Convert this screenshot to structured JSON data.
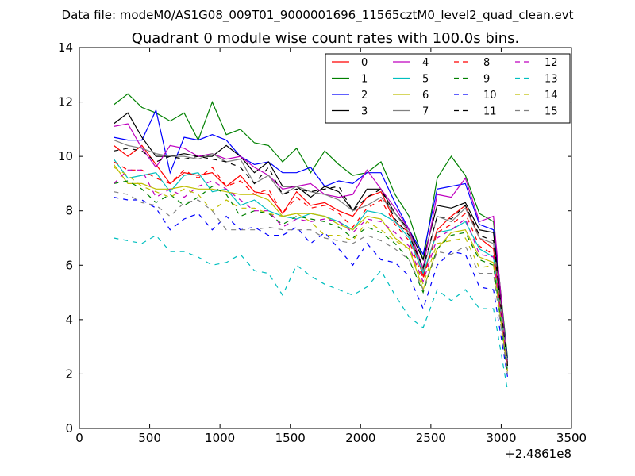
{
  "chart_data": {
    "type": "line",
    "suptitle": "Data file: modeM0/AS1G08_009T01_9000001696_11565cztM0_level2_quad_clean.evt",
    "title": "Quadrant 0 module wise count rates with 100.0s bins.",
    "xlabel": "",
    "ylabel": "",
    "x_offset_label": "+2.4861e8",
    "xlim": [
      0,
      3500
    ],
    "ylim": [
      0,
      14
    ],
    "xticks": [
      0,
      500,
      1000,
      1500,
      2000,
      2500,
      3000,
      3500
    ],
    "xtick_labels": [
      "0",
      "500",
      "1000",
      "1500",
      "2000",
      "2500",
      "3000",
      "3500"
    ],
    "yticks": [
      0,
      2,
      4,
      6,
      8,
      10,
      12,
      14
    ],
    "ytick_labels": [
      "0",
      "2",
      "4",
      "6",
      "8",
      "10",
      "12",
      "14"
    ],
    "grid": false,
    "legend_position": "top-right",
    "legend_columns": 4,
    "x": [
      245,
      345,
      445,
      545,
      645,
      745,
      845,
      945,
      1045,
      1145,
      1245,
      1345,
      1445,
      1545,
      1645,
      1745,
      1845,
      1945,
      2045,
      2145,
      2245,
      2345,
      2445,
      2545,
      2645,
      2745,
      2845,
      2945,
      3045
    ],
    "series": [
      {
        "name": "0",
        "color": "#ff0000",
        "dash": "solid",
        "values": [
          10.4,
          10.0,
          10.4,
          9.7,
          9.0,
          9.4,
          9.3,
          9.4,
          8.9,
          9.3,
          8.7,
          8.6,
          7.9,
          8.7,
          8.2,
          8.3,
          8.0,
          7.8,
          8.5,
          8.7,
          7.6,
          7.2,
          5.6,
          7.3,
          7.8,
          8.2,
          7.0,
          6.6,
          2.4
        ]
      },
      {
        "name": "1",
        "color": "#008000",
        "dash": "solid",
        "values": [
          11.9,
          12.3,
          11.8,
          11.6,
          11.3,
          11.6,
          10.6,
          12.0,
          10.8,
          11.0,
          10.5,
          10.4,
          9.8,
          10.3,
          9.4,
          10.2,
          9.7,
          9.3,
          9.4,
          9.8,
          8.6,
          7.8,
          6.2,
          9.2,
          10.0,
          9.3,
          7.9,
          7.6,
          2.6
        ]
      },
      {
        "name": "2",
        "color": "#0000ff",
        "dash": "solid",
        "values": [
          10.7,
          10.6,
          10.6,
          11.7,
          9.4,
          10.7,
          10.6,
          10.8,
          10.6,
          10.0,
          9.7,
          9.8,
          9.4,
          9.4,
          9.6,
          8.9,
          9.1,
          9.0,
          9.4,
          9.4,
          8.3,
          7.3,
          6.4,
          8.8,
          8.9,
          9.0,
          7.5,
          7.3,
          2.5
        ]
      },
      {
        "name": "3",
        "color": "#000000",
        "dash": "solid",
        "values": [
          11.2,
          11.6,
          10.7,
          10.0,
          10.0,
          10.1,
          10.0,
          10.0,
          10.4,
          10.0,
          9.4,
          9.8,
          8.9,
          8.9,
          8.5,
          8.9,
          8.7,
          8.0,
          8.8,
          8.8,
          7.9,
          7.3,
          6.2,
          8.2,
          8.1,
          8.3,
          7.3,
          7.2,
          2.4
        ]
      },
      {
        "name": "4",
        "color": "#bf00bf",
        "dash": "solid",
        "values": [
          11.1,
          11.2,
          10.3,
          9.6,
          10.4,
          10.3,
          10.0,
          10.1,
          9.9,
          10.0,
          9.6,
          9.3,
          8.8,
          8.9,
          9.0,
          8.6,
          8.5,
          8.6,
          9.5,
          8.8,
          8.1,
          7.3,
          5.9,
          8.6,
          8.5,
          9.2,
          7.6,
          7.8,
          2.3
        ]
      },
      {
        "name": "5",
        "color": "#00bfbf",
        "dash": "solid",
        "values": [
          9.9,
          9.2,
          9.3,
          9.4,
          8.7,
          9.3,
          9.4,
          8.7,
          8.8,
          8.2,
          8.4,
          8.0,
          7.8,
          7.7,
          7.9,
          7.8,
          7.6,
          7.3,
          8.0,
          7.9,
          7.6,
          7.0,
          5.7,
          7.2,
          7.3,
          7.6,
          6.6,
          6.3,
          2.2
        ]
      },
      {
        "name": "6",
        "color": "#bfbf00",
        "dash": "solid",
        "values": [
          9.7,
          9.0,
          9.0,
          8.8,
          8.8,
          8.9,
          8.8,
          8.8,
          8.7,
          8.6,
          8.6,
          8.4,
          7.8,
          7.9,
          7.9,
          7.8,
          7.5,
          7.3,
          7.8,
          7.7,
          7.0,
          6.6,
          5.1,
          6.6,
          7.2,
          7.3,
          6.3,
          6.1,
          2.1
        ]
      },
      {
        "name": "7",
        "color": "#808080",
        "dash": "solid",
        "values": [
          10.6,
          10.4,
          10.3,
          10.1,
          10.0,
          10.0,
          9.9,
          10.1,
          9.8,
          9.9,
          9.0,
          9.3,
          8.6,
          8.9,
          8.7,
          8.6,
          8.4,
          8.0,
          8.2,
          8.5,
          7.9,
          7.2,
          5.8,
          7.8,
          7.6,
          8.1,
          7.0,
          6.8,
          2.4
        ]
      },
      {
        "name": "8",
        "color": "#ff0000",
        "dash": "dashed",
        "values": [
          9.8,
          9.5,
          9.5,
          9.2,
          9.0,
          9.5,
          9.2,
          9.6,
          8.9,
          9.1,
          8.6,
          8.8,
          7.9,
          8.5,
          8.1,
          8.2,
          7.9,
          7.4,
          8.1,
          8.4,
          7.5,
          6.9,
          5.5,
          7.2,
          7.5,
          7.9,
          6.7,
          6.4,
          2.3
        ]
      },
      {
        "name": "9",
        "color": "#008000",
        "dash": "dashed",
        "values": [
          9.0,
          9.1,
          8.8,
          8.3,
          8.6,
          8.2,
          8.5,
          8.9,
          8.6,
          7.8,
          8.0,
          7.9,
          7.5,
          7.8,
          7.7,
          7.6,
          7.4,
          7.0,
          7.4,
          7.2,
          6.8,
          6.2,
          5.0,
          6.6,
          7.1,
          7.2,
          6.2,
          6.0,
          2.0
        ]
      },
      {
        "name": "10",
        "color": "#0000ff",
        "dash": "dashed",
        "values": [
          8.5,
          8.4,
          8.4,
          8.1,
          7.3,
          7.7,
          7.9,
          7.3,
          7.8,
          7.3,
          7.4,
          7.1,
          7.1,
          7.4,
          6.8,
          7.2,
          6.6,
          6.0,
          6.8,
          6.2,
          6.1,
          5.6,
          4.4,
          6.0,
          6.5,
          6.4,
          5.2,
          5.1,
          1.9
        ]
      },
      {
        "name": "11",
        "color": "#000000",
        "dash": "dashed",
        "values": [
          10.2,
          10.3,
          10.2,
          9.8,
          10.0,
          9.9,
          10.0,
          9.9,
          9.8,
          9.6,
          9.0,
          9.6,
          8.6,
          8.8,
          8.7,
          8.8,
          8.9,
          8.0,
          8.5,
          8.8,
          7.7,
          7.1,
          5.9,
          7.8,
          7.7,
          8.2,
          7.1,
          6.9,
          2.3
        ]
      },
      {
        "name": "12",
        "color": "#bf00bf",
        "dash": "dashed",
        "values": [
          9.0,
          9.5,
          9.5,
          8.5,
          8.8,
          8.5,
          8.9,
          9.1,
          8.8,
          8.4,
          8.0,
          8.0,
          7.4,
          7.7,
          7.6,
          7.7,
          7.6,
          7.2,
          7.7,
          7.6,
          7.2,
          6.7,
          5.4,
          7.0,
          7.3,
          7.7,
          6.4,
          6.3,
          2.2
        ]
      },
      {
        "name": "13",
        "color": "#00bfbf",
        "dash": "dashed",
        "values": [
          7.0,
          6.9,
          6.8,
          7.1,
          6.5,
          6.5,
          6.3,
          6.0,
          6.1,
          6.4,
          5.8,
          5.7,
          4.9,
          6.0,
          5.6,
          5.3,
          5.1,
          4.9,
          5.2,
          5.8,
          4.9,
          4.1,
          3.7,
          5.1,
          4.7,
          5.1,
          4.4,
          4.4,
          1.4
        ]
      },
      {
        "name": "14",
        "color": "#bfbf00",
        "dash": "dashed",
        "values": [
          9.6,
          9.3,
          8.9,
          8.7,
          8.5,
          8.8,
          8.6,
          8.0,
          8.4,
          8.1,
          8.1,
          7.9,
          7.8,
          7.9,
          7.6,
          7.1,
          7.1,
          6.9,
          7.6,
          7.3,
          6.9,
          6.6,
          5.3,
          6.8,
          6.9,
          7.0,
          5.9,
          6.0,
          2.1
        ]
      },
      {
        "name": "15",
        "color": "#808080",
        "dash": "dashed",
        "values": [
          8.7,
          8.6,
          8.3,
          8.2,
          7.8,
          8.3,
          8.4,
          8.0,
          7.3,
          7.3,
          7.3,
          7.4,
          7.3,
          7.3,
          7.3,
          7.0,
          6.9,
          6.8,
          7.1,
          6.9,
          6.6,
          6.2,
          5.1,
          6.5,
          6.4,
          6.7,
          5.7,
          5.7,
          2.0
        ]
      }
    ]
  }
}
